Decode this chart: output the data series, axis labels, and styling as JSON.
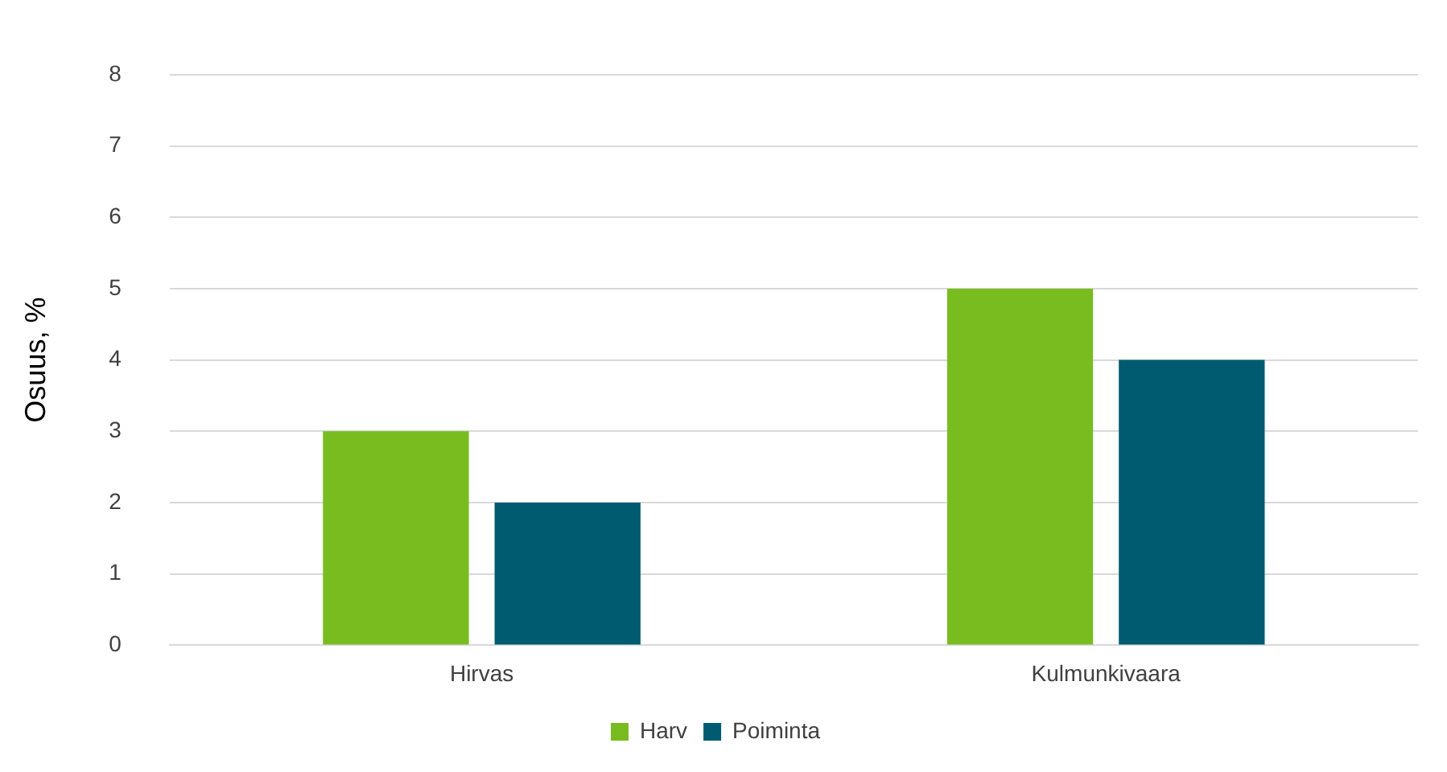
{
  "chart_data": {
    "type": "bar",
    "ylabel": "Osuus, %",
    "categories": [
      "Hirvas",
      "Kulmunkivaara"
    ],
    "series": [
      {
        "name": "Harv",
        "color": "#78bc20",
        "values": [
          3,
          5
        ]
      },
      {
        "name": "Poiminta",
        "color": "#005b70",
        "values": [
          2,
          4
        ]
      }
    ],
    "ylim": [
      0,
      8
    ],
    "yticks": [
      0,
      1,
      2,
      3,
      4,
      5,
      6,
      7,
      8
    ],
    "grid": "y",
    "legend": "bottom"
  }
}
